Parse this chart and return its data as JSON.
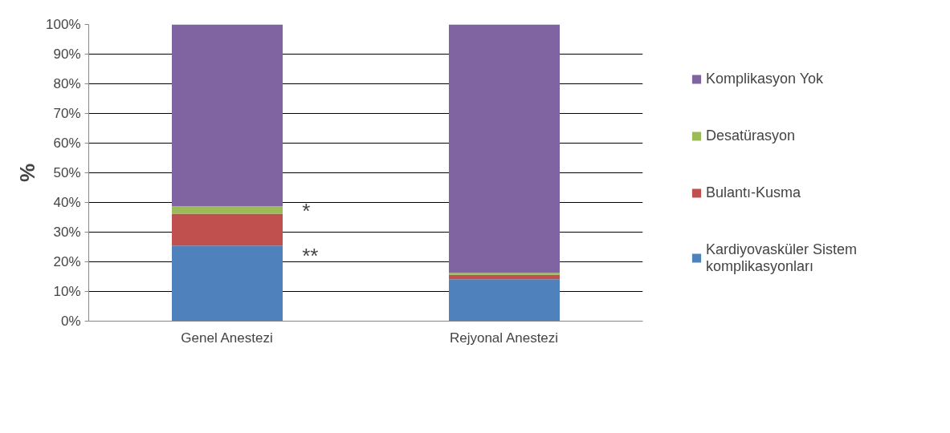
{
  "chart_data": {
    "type": "bar",
    "stacked": true,
    "ylabel": "%",
    "categories": [
      "Genel Anestezi",
      "Rejyonal Anestezi"
    ],
    "series": [
      {
        "name": "Kardiyovasküler Sistem komplikasyonları",
        "color": "#4f81bd",
        "values": [
          25.5,
          14.1
        ]
      },
      {
        "name": "Bulantı-Kusma",
        "color": "#c0504d",
        "values": [
          10.7,
          1.5
        ]
      },
      {
        "name": "Desatürasyon",
        "color": "#9bbb59",
        "values": [
          2.5,
          0.7
        ]
      },
      {
        "name": "Komplikasyon Yok",
        "color": "#8064a2",
        "values": [
          61.3,
          83.7
        ]
      }
    ],
    "ylim": [
      0,
      100
    ],
    "yticks": [
      {
        "value": 0,
        "label": "0%"
      },
      {
        "value": 10,
        "label": "10%"
      },
      {
        "value": 20,
        "label": "20%"
      },
      {
        "value": 30,
        "label": "30%"
      },
      {
        "value": 40,
        "label": "40%"
      },
      {
        "value": 50,
        "label": "50%"
      },
      {
        "value": 60,
        "label": "60%"
      },
      {
        "value": 70,
        "label": "70%"
      },
      {
        "value": 80,
        "label": "80%"
      },
      {
        "value": 90,
        "label": "90%"
      },
      {
        "value": 100,
        "label": "100%"
      }
    ],
    "grid": "y",
    "legend": "right",
    "annotations": [
      "*",
      "**"
    ]
  }
}
